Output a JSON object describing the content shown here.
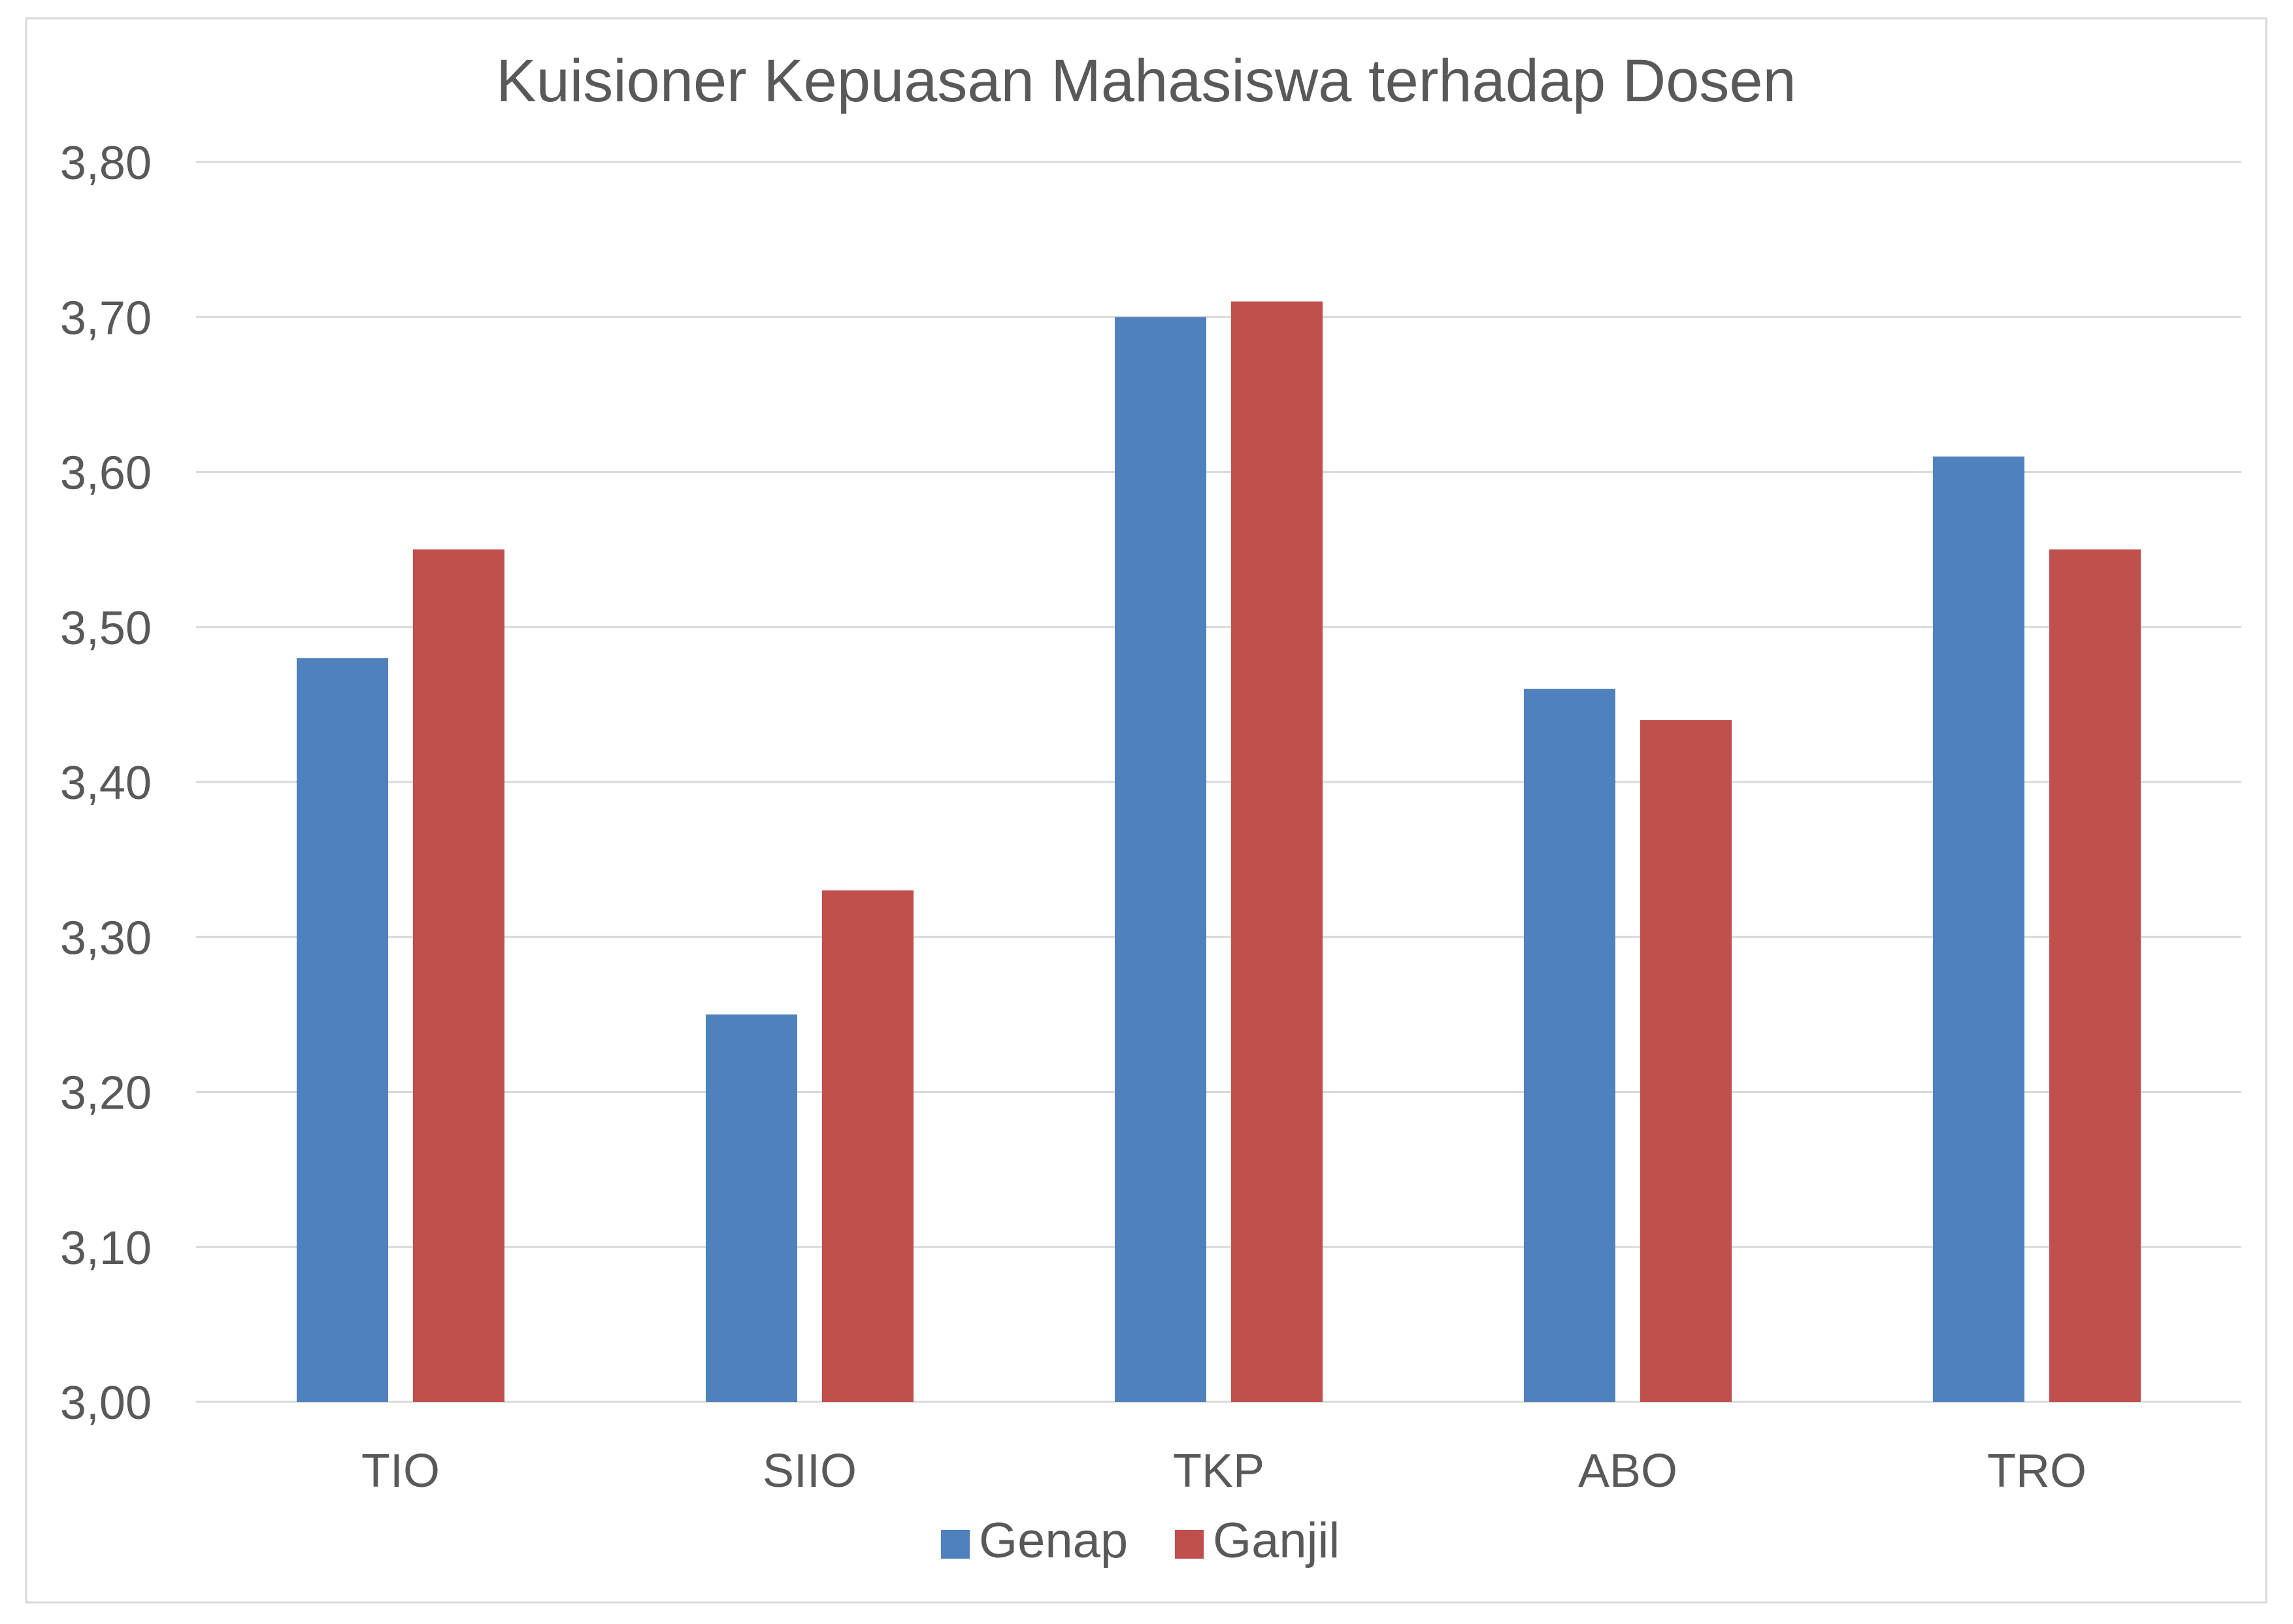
{
  "chart_data": {
    "type": "bar",
    "title": "Kuisioner Kepuasan Mahasiswa terhadap Dosen",
    "xlabel": "",
    "ylabel": "",
    "categories": [
      "TIO",
      "SIIO",
      "TKP",
      "ABO",
      "TRO"
    ],
    "series": [
      {
        "name": "Genap",
        "color": "#4f81bd",
        "values": [
          3.48,
          3.25,
          3.7,
          3.46,
          3.61
        ]
      },
      {
        "name": "Ganjil",
        "color": "#c0504d",
        "values": [
          3.55,
          3.33,
          3.71,
          3.44,
          3.55
        ]
      }
    ],
    "ylim": [
      3.0,
      3.8
    ],
    "yticks": [
      "3,00",
      "3,10",
      "3,20",
      "3,30",
      "3,40",
      "3,50",
      "3,60",
      "3,70",
      "3,80"
    ],
    "grid": true,
    "legend_position": "bottom"
  }
}
